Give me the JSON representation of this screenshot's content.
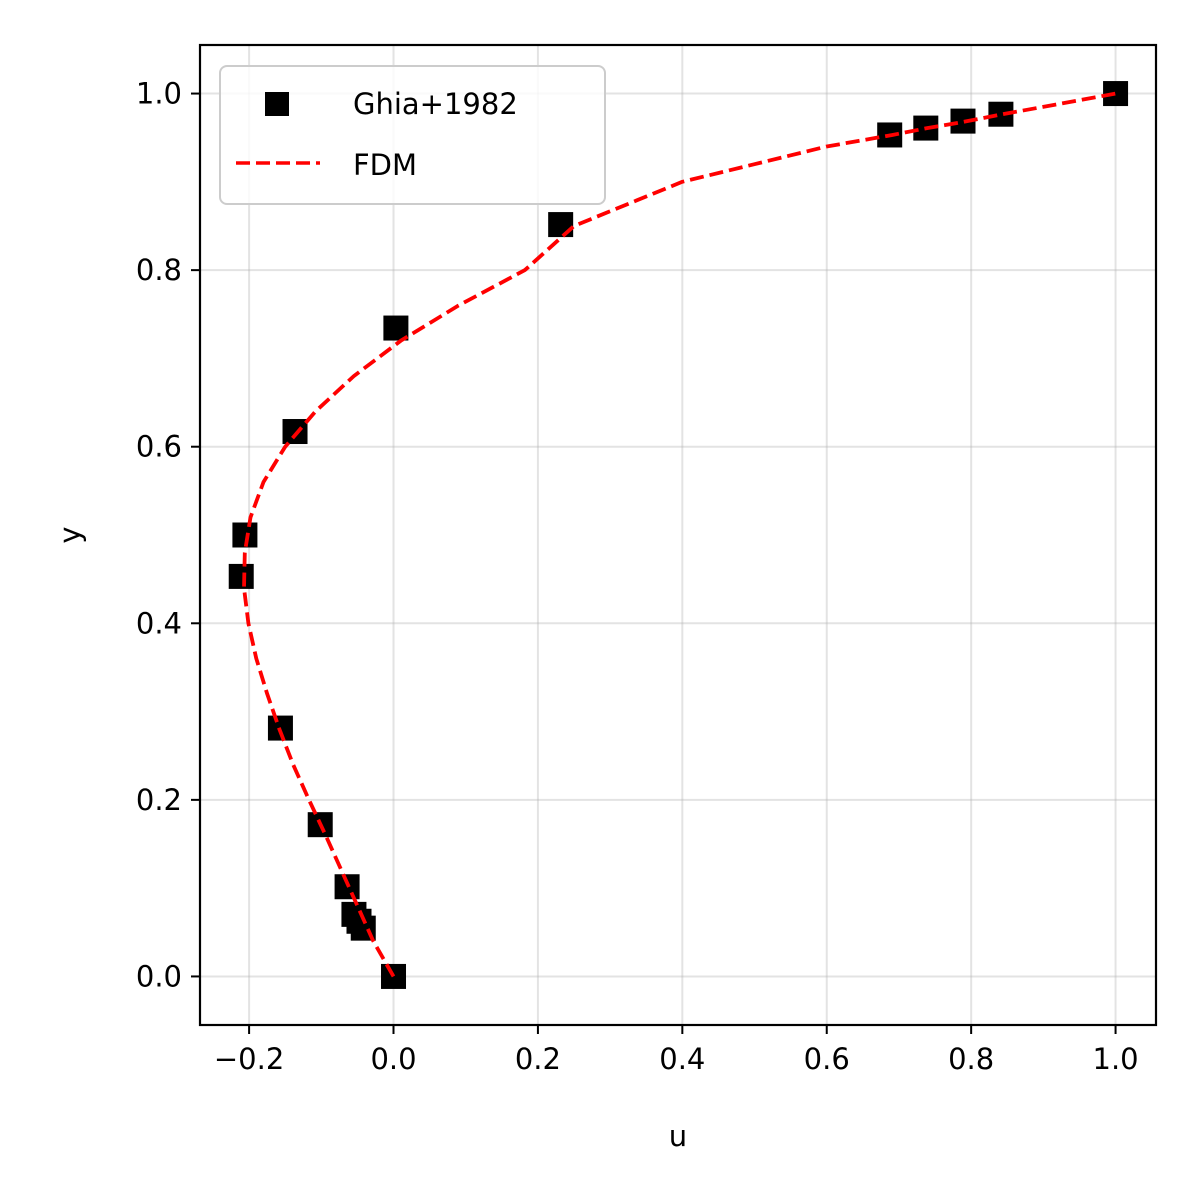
{
  "chart_data": {
    "type": "scatter",
    "xlabel": "u",
    "ylabel": "y",
    "xlim": [
      -0.268,
      1.056
    ],
    "ylim": [
      -0.055,
      1.055
    ],
    "xticks": [
      -0.2,
      0.0,
      0.2,
      0.4,
      0.6,
      0.8,
      1.0
    ],
    "yticks": [
      0.0,
      0.2,
      0.4,
      0.6,
      0.8,
      1.0
    ],
    "xtick_labels": [
      "−0.2",
      "0.0",
      "0.2",
      "0.4",
      "0.6",
      "0.8",
      "1.0"
    ],
    "ytick_labels": [
      "0.0",
      "0.2",
      "0.4",
      "0.6",
      "0.8",
      "1.0"
    ],
    "grid": true,
    "legend_position": "top-left",
    "series": [
      {
        "name": "Ghia+1982",
        "kind": "scatter",
        "marker": "square",
        "color": "#000000",
        "points": [
          [
            0.0,
            0.0
          ],
          [
            -0.0419,
            0.0547
          ],
          [
            -0.0478,
            0.0625
          ],
          [
            -0.0548,
            0.0703
          ],
          [
            -0.0643,
            0.1016
          ],
          [
            -0.1015,
            0.1719
          ],
          [
            -0.1566,
            0.2813
          ],
          [
            -0.2109,
            0.4531
          ],
          [
            -0.2058,
            0.5
          ],
          [
            -0.1364,
            0.6172
          ],
          [
            0.0033,
            0.7344
          ],
          [
            0.2315,
            0.8516
          ],
          [
            0.6872,
            0.9531
          ],
          [
            0.7372,
            0.9609
          ],
          [
            0.7887,
            0.9688
          ],
          [
            0.8412,
            0.9766
          ],
          [
            1.0,
            1.0
          ]
        ]
      },
      {
        "name": "FDM",
        "kind": "line",
        "style": "dashed",
        "color": "#ff0000",
        "points": [
          [
            0.0,
            0.0
          ],
          [
            -0.028,
            0.04
          ],
          [
            -0.05,
            0.08
          ],
          [
            -0.072,
            0.12
          ],
          [
            -0.094,
            0.16
          ],
          [
            -0.117,
            0.2
          ],
          [
            -0.139,
            0.24
          ],
          [
            -0.158,
            0.28
          ],
          [
            -0.175,
            0.32
          ],
          [
            -0.19,
            0.36
          ],
          [
            -0.201,
            0.4
          ],
          [
            -0.207,
            0.44
          ],
          [
            -0.206,
            0.48
          ],
          [
            -0.198,
            0.52
          ],
          [
            -0.18,
            0.56
          ],
          [
            -0.15,
            0.6
          ],
          [
            -0.108,
            0.64
          ],
          [
            -0.055,
            0.68
          ],
          [
            0.01,
            0.72
          ],
          [
            0.09,
            0.76
          ],
          [
            0.182,
            0.8
          ],
          [
            0.25,
            0.85
          ],
          [
            0.4,
            0.9
          ],
          [
            0.5,
            0.92
          ],
          [
            0.6,
            0.94
          ],
          [
            0.69,
            0.953
          ],
          [
            0.74,
            0.961
          ],
          [
            0.79,
            0.968
          ],
          [
            0.84,
            0.976
          ],
          [
            0.92,
            0.988
          ],
          [
            1.0,
            1.0
          ]
        ]
      }
    ]
  }
}
